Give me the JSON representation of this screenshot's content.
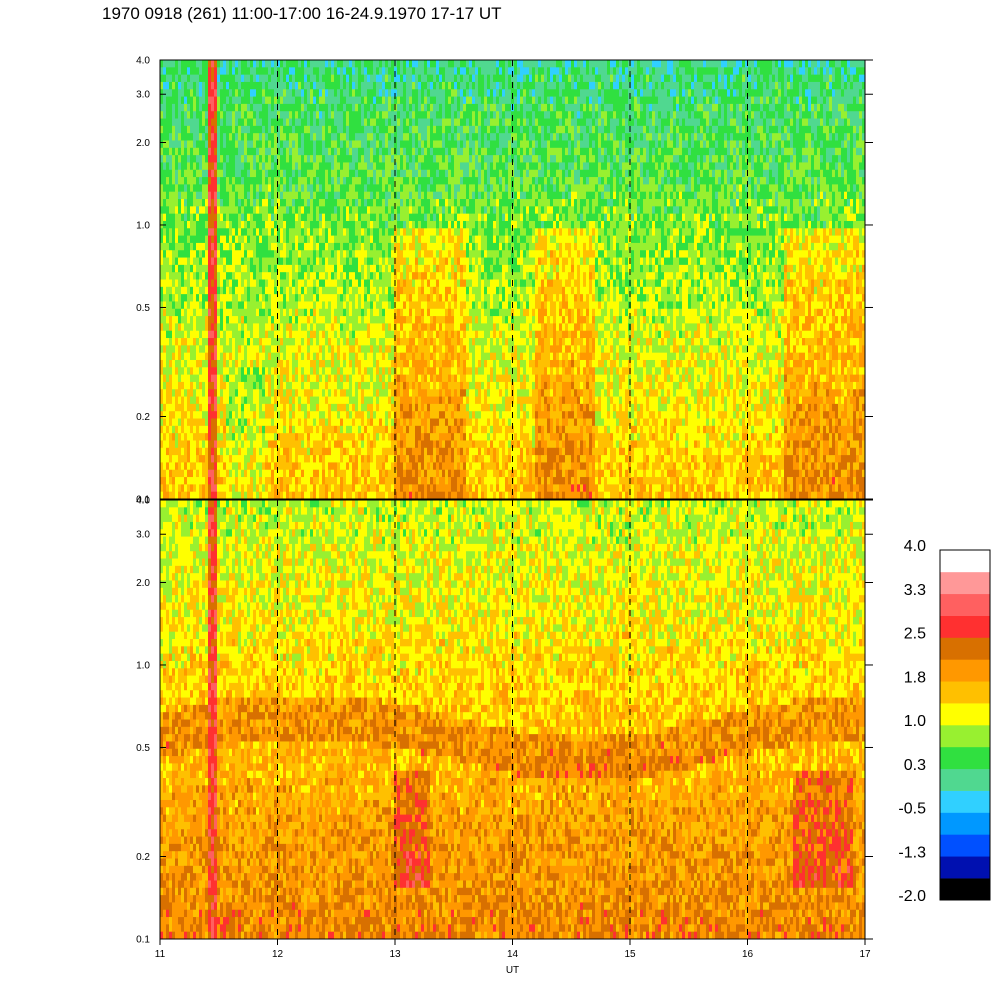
{
  "title": "1970 0918 (261) 11:00-17:00 16-24.9.1970  17-17 UT",
  "chart_data": {
    "type": "heatmap",
    "title": "1970 0918 (261) 11:00-17:00 16-24.9.1970  17-17 UT",
    "xlabel": "UT",
    "ylabel": "",
    "xlim": [
      11,
      17
    ],
    "x_ticks": [
      "11",
      "12",
      "13",
      "14",
      "15",
      "16",
      "17"
    ],
    "x_dashed_gridlines": [
      12,
      13,
      14,
      15,
      16
    ],
    "y_scale": "log",
    "ylim": [
      0.1,
      4.0
    ],
    "y_ticks": [
      "4.0",
      "3.0",
      "2.0",
      "1.0",
      "0.5",
      "0.2",
      "0.1"
    ],
    "panels": [
      {
        "name": "upper",
        "ylim": [
          0.1,
          4.0
        ],
        "description_levels": {
          "high_freq_typical": 0.3,
          "low_freq_typical": 1.0,
          "enhanced_intervals_UT": [
            [
              13.0,
              13.6
            ],
            [
              14.2,
              14.7
            ],
            [
              16.3,
              17.0
            ]
          ],
          "red_spike_UT": 11.45
        }
      },
      {
        "name": "lower",
        "ylim": [
          0.1,
          4.0
        ],
        "description_levels": {
          "high_freq_typical": 1.0,
          "low_freq_typical": 2.0,
          "band_center_y": 0.6,
          "red_patch_intervals_UT": [
            [
              13.0,
              13.3
            ],
            [
              16.4,
              16.9
            ]
          ],
          "red_spike_UT": 11.45
        }
      }
    ],
    "colorbar": {
      "range": [
        -2.0,
        4.0
      ],
      "tick_labels": [
        "4.0",
        "3.3",
        "2.5",
        "1.8",
        "1.0",
        "0.3",
        "-0.5",
        "-1.3",
        "-2.0"
      ],
      "colors": [
        "#000000",
        "#0010b0",
        "#0050ff",
        "#0098ff",
        "#30d0ff",
        "#50d890",
        "#30e040",
        "#98f030",
        "#ffff00",
        "#ffc000",
        "#ff9800",
        "#d87000",
        "#ff3030",
        "#ff6060",
        "#ff9898",
        "#ffffff"
      ]
    }
  }
}
